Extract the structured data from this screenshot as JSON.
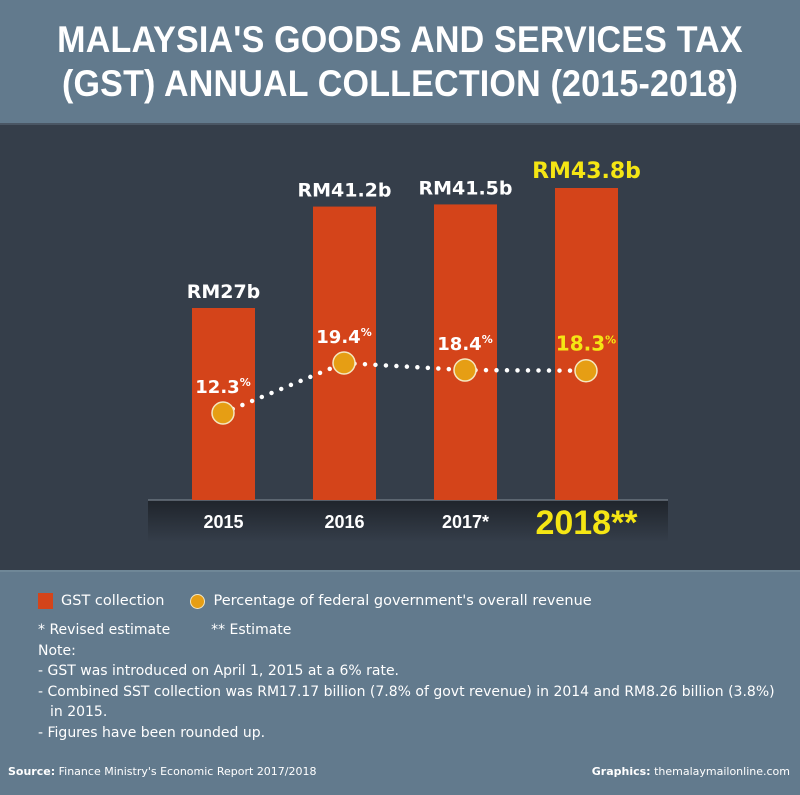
{
  "title": {
    "line1": "MALAYSIA'S GOODS AND SERVICES TAX",
    "line2": "(GST) ANNUAL COLLECTION (2015-2018)"
  },
  "colors": {
    "bar": "#d4441a",
    "dot": "#e69e14",
    "highlight": "#f5e614",
    "text": "#ffffff",
    "panel": "#353e4a",
    "background": "#627a8d"
  },
  "chart_data": {
    "type": "bar",
    "title": "Malaysia's Goods and Services Tax (GST) Annual Collection (2015-2018)",
    "categories": [
      "2015",
      "2016",
      "2017*",
      "2018**"
    ],
    "series": [
      {
        "name": "GST collection",
        "unit": "RM billion",
        "values": [
          27,
          41.2,
          41.5,
          43.8
        ],
        "labels": [
          "RM27b",
          "RM41.2b",
          "RM41.5b",
          "RM43.8b"
        ]
      },
      {
        "name": "Percentage of federal government's overall revenue",
        "type": "line",
        "style": "dotted",
        "unit": "%",
        "values": [
          12.3,
          19.4,
          18.4,
          18.3
        ],
        "labels": [
          "12.3",
          "19.4",
          "18.4",
          "18.3"
        ]
      }
    ],
    "highlighted_category": "2018**",
    "xlabel": "",
    "ylabel": "",
    "ylim": [
      0,
      50
    ],
    "grid": false,
    "legend": "bottom-left"
  },
  "legend": {
    "bar_label": "GST collection",
    "dot_label": "Percentage of federal government's overall revenue"
  },
  "notes": {
    "asterisks": "* Revised estimate",
    "double_asterisks": "** Estimate",
    "heading": "Note:",
    "items": [
      "- GST was introduced on April 1, 2015 at a 6% rate.",
      "- Combined SST collection was RM17.17 billion (7.8% of govt revenue) in 2014 and RM8.26 billion (3.8%)",
      "in 2015.",
      "- Figures have been rounded up."
    ]
  },
  "footer": {
    "source_label": "Source:",
    "source_text": "Finance Ministry's Economic Report 2017/2018",
    "graphics_label": "Graphics:",
    "graphics_text": "themalaymailonline.com"
  }
}
